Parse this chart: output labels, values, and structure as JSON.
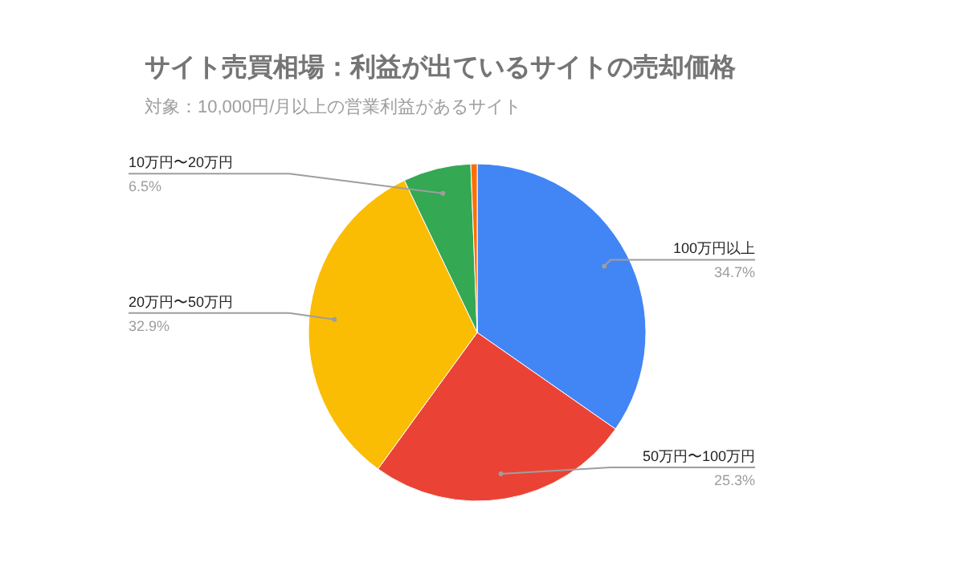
{
  "chart_data": {
    "type": "pie",
    "title": "サイト売買相場：利益が出ているサイトの売却価格",
    "subtitle": "対象：10,000円/月以上の営業利益があるサイト",
    "categories": [
      "100万円以上",
      "50万円〜100万円",
      "20万円〜50万円",
      "10万円〜20万円",
      null
    ],
    "values": [
      34.7,
      25.3,
      32.9,
      6.5,
      0.6
    ],
    "colors": [
      "#4285f4",
      "#ea4335",
      "#fbbc04",
      "#34a853",
      "#ff6d01"
    ],
    "value_labels": [
      "34.7%",
      "25.3%",
      "32.9%",
      "6.5%",
      null
    ]
  }
}
